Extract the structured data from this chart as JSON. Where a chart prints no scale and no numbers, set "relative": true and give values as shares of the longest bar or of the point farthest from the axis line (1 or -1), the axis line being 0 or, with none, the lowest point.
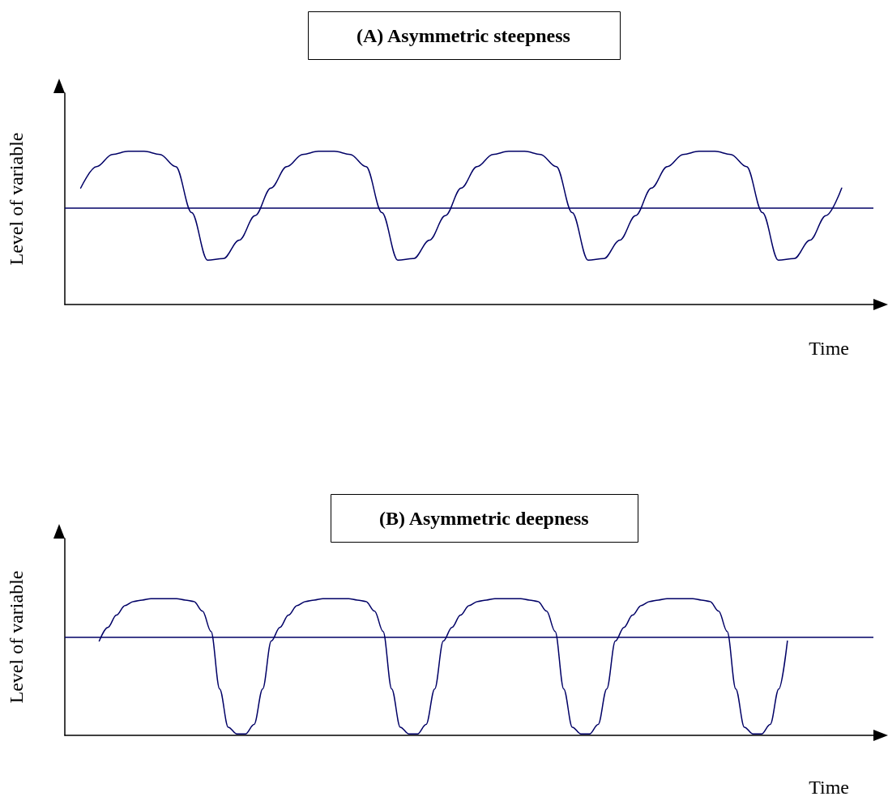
{
  "chart_data": [
    {
      "type": "line",
      "title": "(A) Asymmetric steepness",
      "xlabel": "Time",
      "ylabel": "Level of variable",
      "relative": true,
      "marker": "none",
      "line_style": "solid",
      "categories": [
        null,
        null,
        null,
        null,
        null,
        null,
        null,
        null,
        null,
        null,
        null,
        null,
        null,
        null,
        null,
        null,
        null,
        null,
        null,
        null,
        null,
        null,
        null,
        null,
        null,
        null,
        null,
        null,
        null,
        null,
        null,
        null,
        null,
        null,
        null,
        null,
        null,
        null,
        null,
        null,
        null,
        null,
        null,
        null,
        null,
        null,
        null,
        null,
        null,
        null,
        null,
        null
      ],
      "series": [
        {
          "color": "#000066",
          "values": [
            null,
            0.76,
            0.9,
            0.98,
            1.0,
            1.0,
            0.98,
            0.9,
            0.6,
            0.29,
            0.3,
            0.42,
            0.58,
            0.76,
            0.9,
            0.98,
            1.0,
            1.0,
            0.98,
            0.9,
            0.6,
            0.29,
            0.3,
            0.42,
            0.58,
            0.76,
            0.9,
            0.98,
            1.0,
            1.0,
            0.98,
            0.9,
            0.6,
            0.29,
            0.3,
            0.42,
            0.58,
            0.76,
            0.9,
            0.98,
            1.0,
            1.0,
            0.98,
            0.9,
            0.6,
            0.29,
            0.3,
            0.42,
            0.58,
            0.76,
            null,
            null
          ]
        }
      ],
      "ref_lines": [
        {
          "axis": "y",
          "value": 0.63,
          "color": "#000066"
        }
      ]
    },
    {
      "type": "line",
      "title": "(B) Asymmetric deepness",
      "xlabel": "Time",
      "ylabel": "Level of variable",
      "relative": true,
      "marker": "none",
      "line_style": "solid",
      "categories": [
        null,
        null,
        null,
        null,
        null,
        null,
        null,
        null,
        null,
        null,
        null,
        null,
        null,
        null,
        null,
        null,
        null,
        null,
        null,
        null,
        null,
        null,
        null,
        null,
        null,
        null,
        null,
        null,
        null,
        null,
        null,
        null,
        null,
        null,
        null,
        null,
        null,
        null,
        null,
        null,
        null,
        null,
        null,
        null,
        null,
        null,
        null,
        null,
        null,
        null,
        null,
        null,
        null,
        null,
        null,
        null,
        null,
        null,
        null,
        null,
        null,
        null,
        null,
        null,
        null,
        null,
        null,
        null,
        null,
        null,
        null,
        null,
        null,
        null,
        null,
        null,
        null,
        null,
        null,
        null,
        null,
        null,
        null,
        null,
        null,
        null,
        null,
        null,
        null,
        null,
        null,
        null,
        null,
        null,
        null
      ],
      "series": [
        {
          "color": "#000066",
          "values": [
            null,
            null,
            null,
            null,
            0.69,
            0.79,
            0.88,
            0.95,
            0.98,
            0.99,
            1.0,
            1.0,
            1.0,
            1.0,
            0.99,
            0.98,
            0.91,
            0.76,
            0.34,
            0.06,
            0.01,
            0.01,
            0.08,
            0.34,
            0.69,
            0.79,
            0.88,
            0.95,
            0.98,
            0.99,
            1.0,
            1.0,
            1.0,
            1.0,
            0.99,
            0.98,
            0.91,
            0.76,
            0.34,
            0.06,
            0.01,
            0.01,
            0.08,
            0.34,
            0.69,
            0.79,
            0.88,
            0.95,
            0.98,
            0.99,
            1.0,
            1.0,
            1.0,
            1.0,
            0.99,
            0.98,
            0.91,
            0.76,
            0.34,
            0.06,
            0.01,
            0.01,
            0.08,
            0.34,
            0.69,
            0.79,
            0.88,
            0.95,
            0.98,
            0.99,
            1.0,
            1.0,
            1.0,
            1.0,
            0.99,
            0.98,
            0.91,
            0.76,
            0.34,
            0.06,
            0.01,
            0.01,
            0.08,
            0.34,
            0.69,
            null,
            null,
            null,
            null,
            null,
            null,
            null,
            null,
            null,
            null
          ]
        }
      ],
      "ref_lines": [
        {
          "axis": "y",
          "value": 0.72,
          "color": "#000066"
        }
      ]
    }
  ]
}
